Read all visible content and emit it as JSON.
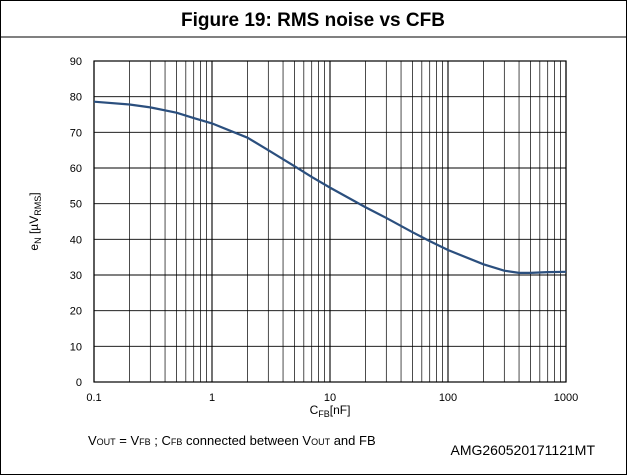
{
  "chart_data": {
    "type": "line",
    "title": "Figure 19: RMS noise vs CFB",
    "y_label": [
      "e",
      "N",
      " [µV",
      "RMS",
      "]"
    ],
    "x_label": [
      "C",
      "FB",
      "[nF]"
    ],
    "footnote": [
      "V",
      "OUT",
      " = V",
      "FB",
      " ; C",
      "FB",
      "  connected between V",
      "OUT",
      "  and FB"
    ],
    "code": "AMG260520171121MT",
    "x_scale": "log",
    "xlim": [
      0.1,
      1000
    ],
    "xticks": [
      0.1,
      1,
      10,
      100,
      1000
    ],
    "ylim": [
      0,
      90
    ],
    "yticks": [
      0,
      10,
      20,
      30,
      40,
      50,
      60,
      70,
      80,
      90
    ],
    "grid": true,
    "x": [
      0.1,
      0.2,
      0.3,
      0.5,
      0.7,
      1,
      2,
      3,
      5,
      7,
      10,
      20,
      30,
      50,
      70,
      100,
      200,
      300,
      400,
      500,
      700,
      1000
    ],
    "series": [
      {
        "color": "#2b4f7e",
        "values": [
          78.6,
          77.8,
          77,
          75.5,
          74,
          72.5,
          68.5,
          65,
          60.5,
          57.5,
          54.5,
          49,
          46,
          42,
          39.5,
          37,
          33,
          31.2,
          30.6,
          30.6,
          30.8,
          30.9
        ]
      }
    ]
  }
}
